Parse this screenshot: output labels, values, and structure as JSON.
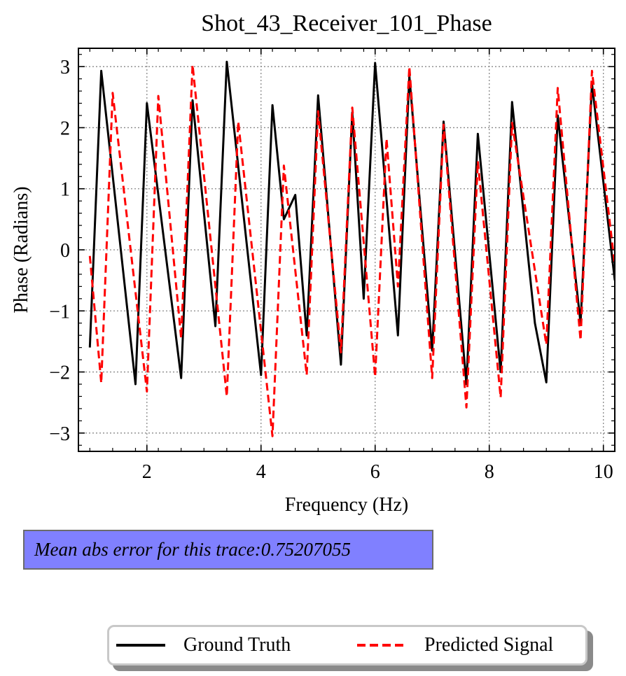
{
  "chart_data": {
    "type": "line",
    "title": "Shot_43_Receiver_101_Phase",
    "xlabel": "Frequency (Hz)",
    "ylabel": "Phase (Radians)",
    "xlim": [
      0.8,
      10.2
    ],
    "ylim": [
      -3.3,
      3.3
    ],
    "xticks": [
      2,
      4,
      6,
      8,
      10
    ],
    "yticks": [
      -3,
      -2,
      -1,
      0,
      1,
      2,
      3
    ],
    "tick_labels_x": [
      "2",
      "4",
      "6",
      "8",
      "10"
    ],
    "tick_labels_y": [
      "−3",
      "−2",
      "−1",
      "0",
      "1",
      "2",
      "3"
    ],
    "grid": true,
    "legend_position": "bottom-center",
    "series": [
      {
        "name": "Ground Truth",
        "color": "#000000",
        "style": "solid",
        "x": [
          1.0,
          1.2,
          1.8,
          2.0,
          2.6,
          2.8,
          3.2,
          3.4,
          4.0,
          4.2,
          4.4,
          4.6,
          4.8,
          5.0,
          5.4,
          5.6,
          5.8,
          6.0,
          6.4,
          6.6,
          7.0,
          7.2,
          7.6,
          7.8,
          8.2,
          8.4,
          8.8,
          9.0,
          9.2,
          9.6,
          9.8,
          10.2
        ],
        "y": [
          -1.6,
          2.93,
          -2.2,
          2.4,
          -2.1,
          2.45,
          -1.25,
          3.08,
          -2.05,
          2.37,
          0.5,
          0.9,
          -1.4,
          2.53,
          -1.88,
          2.25,
          -0.8,
          3.06,
          -1.4,
          2.85,
          -1.65,
          2.1,
          -2.2,
          1.9,
          -2.0,
          2.42,
          -1.2,
          -2.17,
          2.2,
          -1.2,
          2.72,
          -0.5
        ]
      },
      {
        "name": "Predicted Signal",
        "color": "#ff0000",
        "style": "dashed",
        "x": [
          1.0,
          1.2,
          1.4,
          2.0,
          2.2,
          2.6,
          2.8,
          3.4,
          3.6,
          4.2,
          4.4,
          4.8,
          5.0,
          5.4,
          5.6,
          6.0,
          6.2,
          6.4,
          6.6,
          7.0,
          7.2,
          7.6,
          7.8,
          8.2,
          8.4,
          9.0,
          9.2,
          9.6,
          9.8,
          10.2
        ],
        "y": [
          -0.1,
          -2.18,
          2.57,
          -2.32,
          2.52,
          -1.45,
          3.03,
          -2.4,
          2.1,
          -3.05,
          1.38,
          -2.05,
          2.27,
          -1.68,
          2.33,
          -2.08,
          1.82,
          -0.6,
          3.0,
          -2.1,
          2.05,
          -2.58,
          1.45,
          -2.42,
          2.08,
          -1.55,
          2.65,
          -1.48,
          2.93,
          -0.25
        ]
      }
    ]
  },
  "annotation": {
    "error_text": "Mean abs error for this trace:0.75207055",
    "bg_color": "#8080ff"
  },
  "legend": {
    "items": [
      {
        "label": "Ground Truth",
        "color": "#000000"
      },
      {
        "label": "Predicted Signal",
        "color": "#ff0000"
      }
    ]
  }
}
